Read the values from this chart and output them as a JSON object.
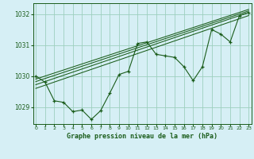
{
  "xlabel": "Graphe pression niveau de la mer (hPa)",
  "x_ticks": [
    0,
    1,
    2,
    3,
    4,
    5,
    6,
    7,
    8,
    9,
    10,
    11,
    12,
    13,
    14,
    15,
    16,
    17,
    18,
    19,
    20,
    21,
    22,
    23
  ],
  "y_ticks": [
    1029,
    1030,
    1031,
    1032
  ],
  "ylim": [
    1028.45,
    1032.35
  ],
  "xlim": [
    -0.3,
    23.3
  ],
  "bg_color": "#d6eff5",
  "grid_color": "#9dcfbf",
  "line_color": "#1a5c1a",
  "pressure_values": [
    1030.0,
    1029.8,
    1029.2,
    1029.15,
    1028.85,
    1028.9,
    1028.6,
    1028.88,
    1029.45,
    1030.05,
    1030.15,
    1031.05,
    1031.1,
    1030.7,
    1030.65,
    1030.6,
    1030.3,
    1029.85,
    1030.3,
    1031.5,
    1031.35,
    1031.1,
    1031.95,
    1032.05
  ],
  "trend_lines": [
    {
      "x": [
        0,
        23
      ],
      "y": [
        1029.6,
        1031.95
      ]
    },
    {
      "x": [
        0,
        23
      ],
      "y": [
        1029.72,
        1032.05
      ]
    },
    {
      "x": [
        0,
        23
      ],
      "y": [
        1029.82,
        1032.1
      ]
    },
    {
      "x": [
        0,
        23
      ],
      "y": [
        1029.9,
        1032.15
      ]
    }
  ]
}
